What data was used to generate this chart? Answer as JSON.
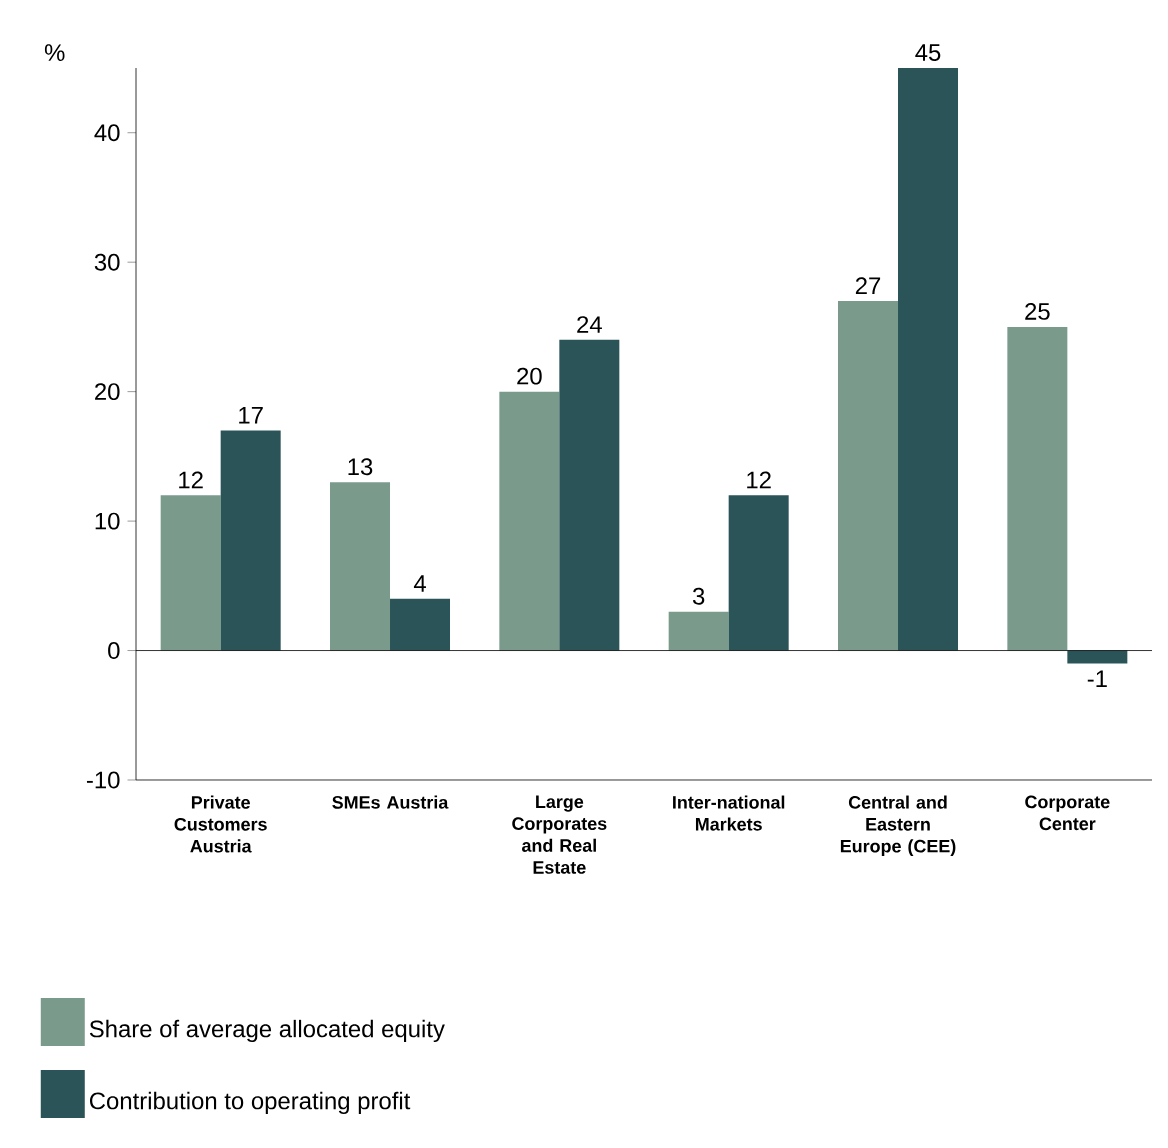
{
  "chart_data": {
    "type": "bar",
    "ylabel": "%",
    "categories": [
      "Private Customers Austria",
      "SMEs Austria",
      "Large Corporates and Real Estate",
      "Inter-national Markets",
      "Central and Eastern Europe (CEE)",
      "Corporate Center"
    ],
    "series": [
      {
        "name": "Share of average allocated equity",
        "color": "#7a9a8b",
        "values": [
          12,
          13,
          20,
          3,
          27,
          25
        ]
      },
      {
        "name": "Contribution to operating profit",
        "color": "#2b5459",
        "values": [
          17,
          4,
          24,
          12,
          45,
          -1
        ]
      }
    ],
    "ylim": [
      -10,
      45
    ],
    "yticks": [
      -10,
      0,
      10,
      20,
      30,
      40
    ],
    "ref_lines": [
      {
        "axis": "y",
        "value": 0,
        "color": "#000000"
      }
    ],
    "data_labels": true,
    "legend": "bottom"
  }
}
